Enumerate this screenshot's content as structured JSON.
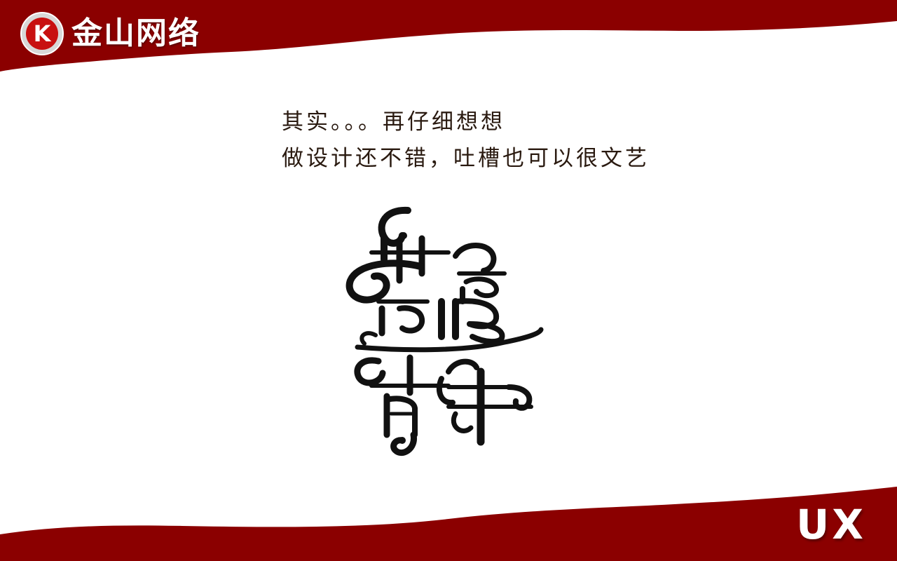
{
  "brand": {
    "logo_letter": "K",
    "logo_text": "金山网络",
    "corner_text": "UX"
  },
  "caption": {
    "line1": "其实。。。再仔细想想",
    "line2": "做设计还不错，吐槽也可以很文艺"
  },
  "artwork": {
    "text": "文艺青年",
    "style": "calligraphic-swirl-lettering"
  },
  "colors": {
    "band": "#8b0000",
    "background": "#ffffff",
    "caption_text": "#2a1a10",
    "art_ink": "#111111",
    "logo_badge_red": "#c81010",
    "logo_badge_ring": "#d8d8d8"
  }
}
